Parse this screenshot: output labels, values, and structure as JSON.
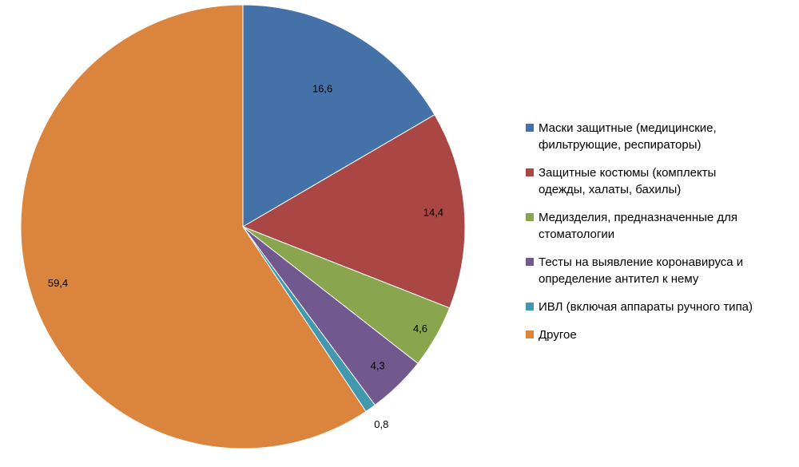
{
  "chart_data": {
    "type": "pie",
    "title": "",
    "start": "top",
    "direction": "clockwise",
    "legend_position": "right",
    "slices": [
      {
        "label": "Маски защитные (медицинские,\nфильтрующие, респираторы)",
        "value": 16.6,
        "value_label": "16,6",
        "color": "#4472a8"
      },
      {
        "label": "Защитные костюмы (комплекты\nодежды, халаты, бахилы)",
        "value": 14.4,
        "value_label": "14,4",
        "color": "#aa4644"
      },
      {
        "label": "Медизделия, предназначенные для\nстоматологии",
        "value": 4.6,
        "value_label": "4,6",
        "color": "#89a54e"
      },
      {
        "label": "Тесты на выявление коронавируса и\nопределение  антител к нему",
        "value": 4.3,
        "value_label": "4,3",
        "color": "#71588f"
      },
      {
        "label": "ИВЛ (включая аппараты ручного типа)",
        "value": 0.8,
        "value_label": "0,8",
        "color": "#4298af"
      },
      {
        "label": "Другое",
        "value": 59.4,
        "value_label": "59,4",
        "color": "#db843d"
      }
    ]
  }
}
